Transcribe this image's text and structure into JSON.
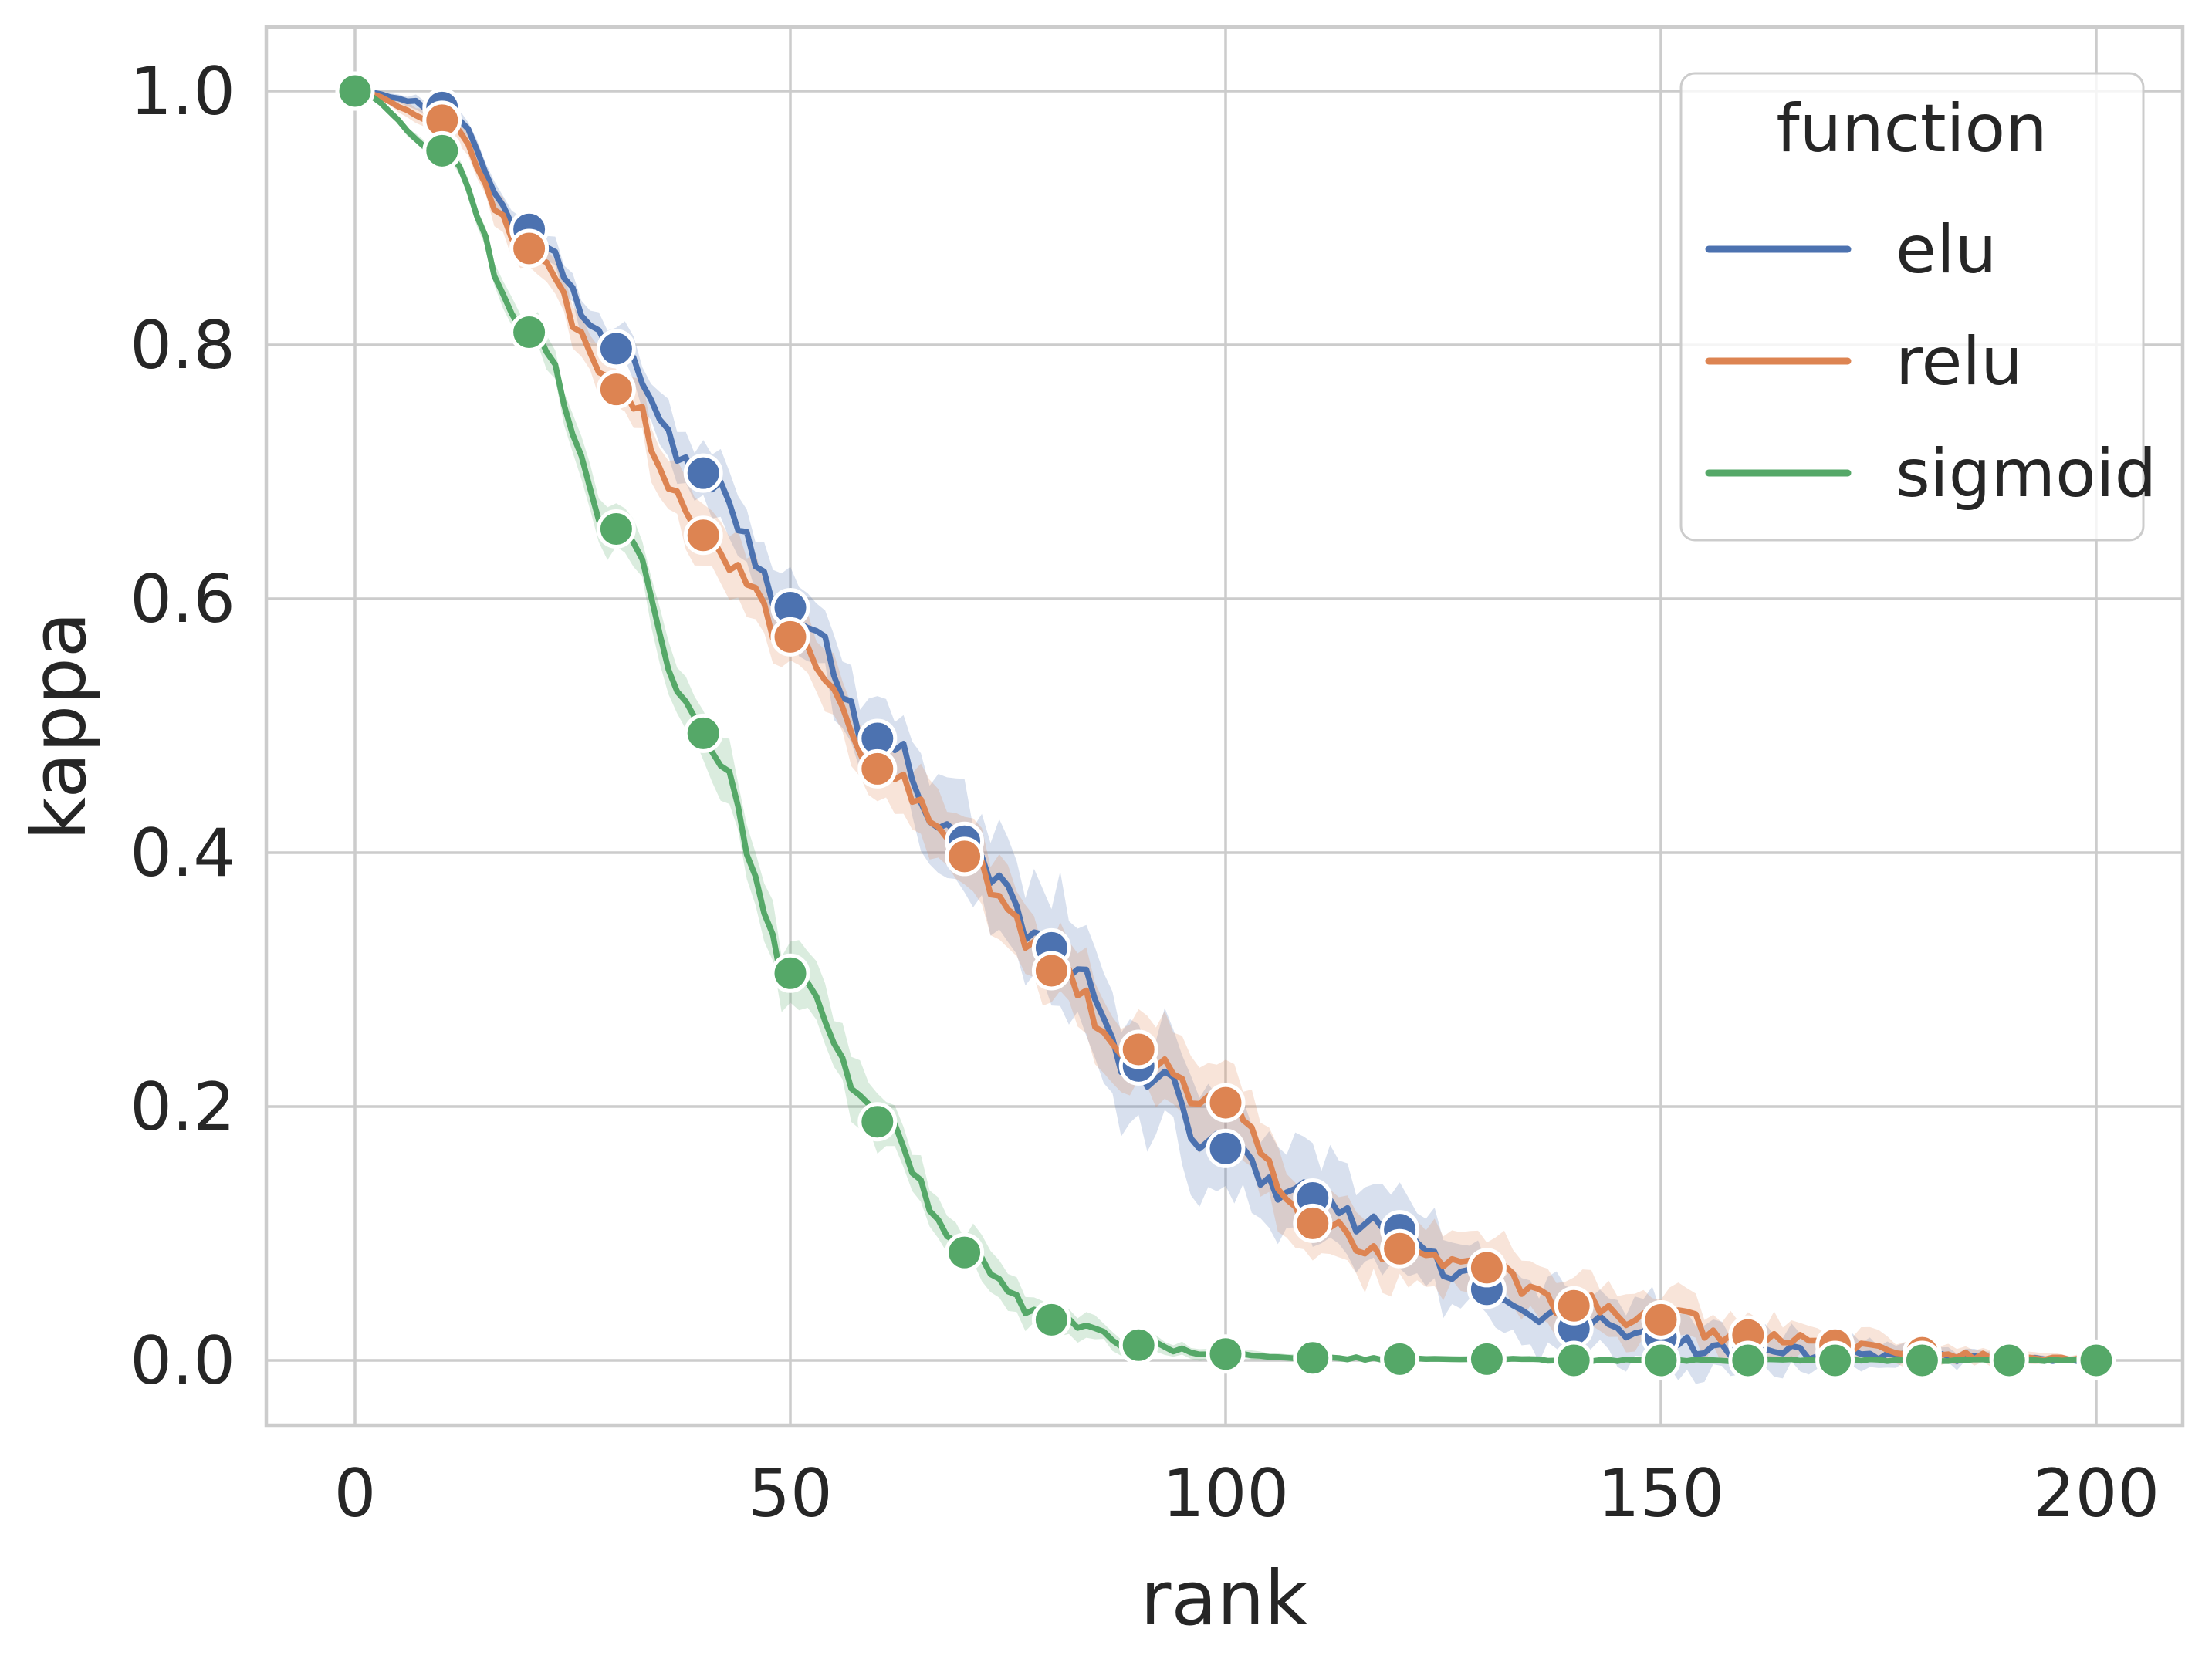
{
  "chart_data": {
    "type": "line",
    "title": "",
    "xlabel": "rank",
    "ylabel": "kappa",
    "xlim": [
      -10.2,
      210
    ],
    "ylim": [
      -0.051,
      1.051
    ],
    "grid": true,
    "background": "#ffffff",
    "grid_color": "#cccccc",
    "spine_color": "#cccccc",
    "text_color": "#262626",
    "marker": "circle",
    "marker_edge_color": "#ffffff",
    "xticks": [
      0,
      50,
      100,
      150,
      200
    ],
    "xtick_labels": [
      "0",
      "50",
      "100",
      "150",
      "200"
    ],
    "yticks": [
      1.0,
      0.8,
      0.6,
      0.4,
      0.2,
      0.0
    ],
    "ytick_labels": [
      "1.0",
      "0.8",
      "0.6",
      "0.4",
      "0.2",
      "0.0"
    ],
    "legend": {
      "title": "function",
      "position": "upper right",
      "frame_alpha": 0.8
    },
    "x": [
      0,
      10,
      20,
      30,
      40,
      50,
      60,
      70,
      80,
      90,
      100,
      110,
      120,
      130,
      140,
      150,
      160,
      170,
      180,
      190,
      200
    ],
    "series": [
      {
        "name": "elu",
        "color": "#4C72B0",
        "values": [
          1.0,
          0.987,
          0.891,
          0.797,
          0.699,
          0.593,
          0.49,
          0.409,
          0.325,
          0.232,
          0.167,
          0.128,
          0.103,
          0.056,
          0.025,
          0.018,
          0.012,
          0.006,
          0.003,
          0.001,
          0.0
        ],
        "band_halfwidth": [
          0.0,
          0.008,
          0.012,
          0.018,
          0.025,
          0.03,
          0.035,
          0.045,
          0.05,
          0.05,
          0.045,
          0.04,
          0.035,
          0.03,
          0.03,
          0.028,
          0.022,
          0.015,
          0.008,
          0.004,
          0.002
        ]
      },
      {
        "name": "relu",
        "color": "#DD8452",
        "values": [
          1.0,
          0.977,
          0.876,
          0.765,
          0.65,
          0.57,
          0.466,
          0.397,
          0.307,
          0.245,
          0.203,
          0.108,
          0.088,
          0.073,
          0.043,
          0.032,
          0.02,
          0.012,
          0.006,
          0.003,
          0.001
        ],
        "band_halfwidth": [
          0.0,
          0.01,
          0.015,
          0.022,
          0.028,
          0.028,
          0.03,
          0.032,
          0.032,
          0.034,
          0.036,
          0.03,
          0.028,
          0.026,
          0.024,
          0.022,
          0.018,
          0.014,
          0.01,
          0.006,
          0.003
        ]
      },
      {
        "name": "sigmoid",
        "color": "#55A868",
        "values": [
          1.0,
          0.953,
          0.81,
          0.655,
          0.494,
          0.305,
          0.188,
          0.085,
          0.032,
          0.012,
          0.005,
          0.002,
          0.001,
          0.001,
          0.0,
          0.0,
          0.0,
          0.0,
          0.0,
          0.0,
          0.0
        ],
        "band_halfwidth": [
          0.0,
          0.006,
          0.015,
          0.02,
          0.025,
          0.03,
          0.025,
          0.018,
          0.012,
          0.007,
          0.004,
          0.003,
          0.002,
          0.002,
          0.002,
          0.002,
          0.002,
          0.002,
          0.002,
          0.002,
          0.002
        ]
      }
    ]
  }
}
